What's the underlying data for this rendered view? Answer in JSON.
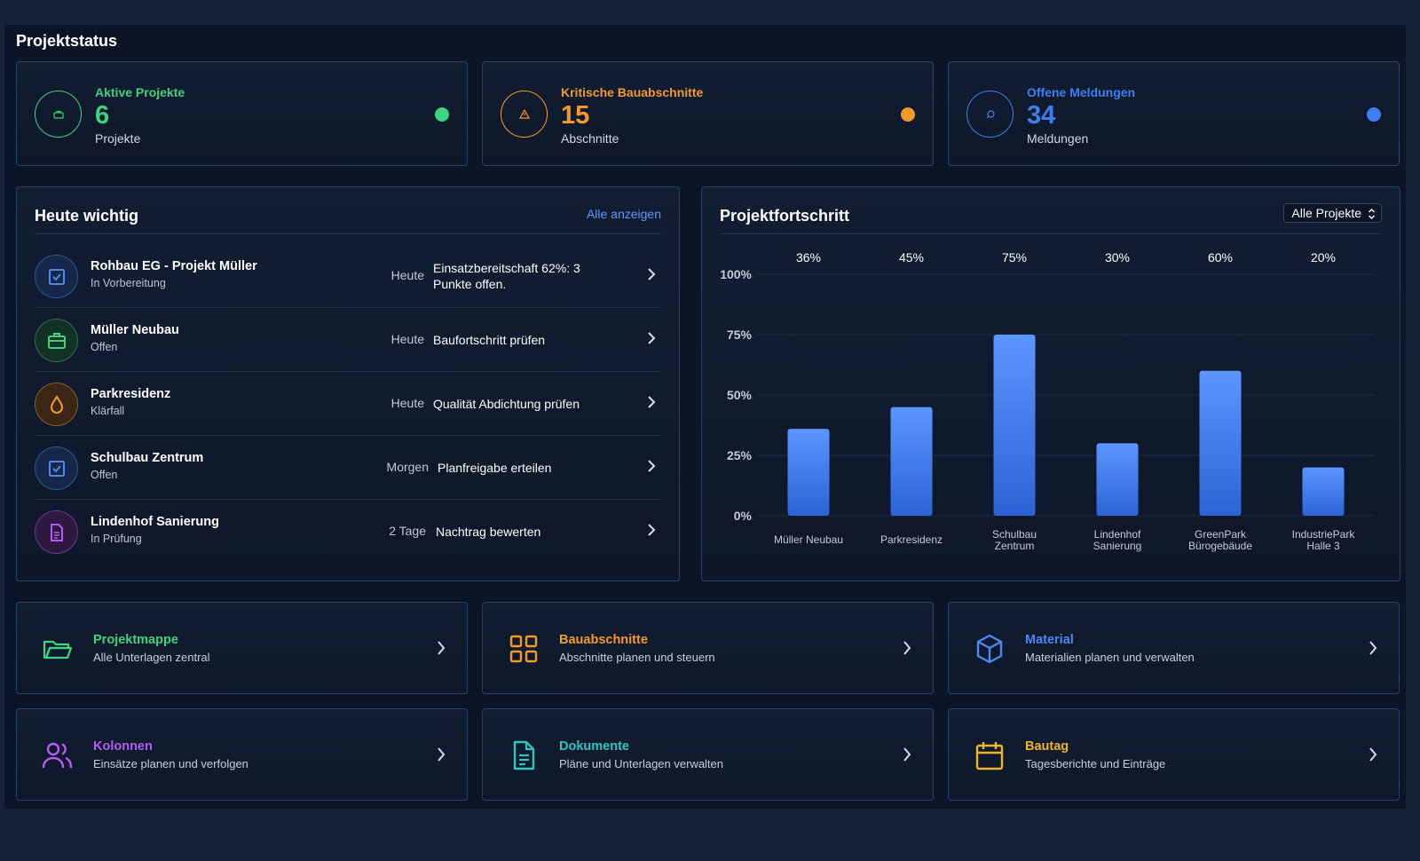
{
  "page": {
    "title": "Projektstatus"
  },
  "stats": [
    {
      "label": "Aktive Projekte",
      "value": "6",
      "unit": "Projekte",
      "color": "#3fd27f",
      "icon": "briefcase-icon"
    },
    {
      "label": "Kritische Bauabschnitte",
      "value": "15",
      "unit": "Abschnitte",
      "color": "#f39a2c",
      "icon": "warning-icon"
    },
    {
      "label": "Offene Meldungen",
      "value": "34",
      "unit": "Meldungen",
      "color": "#3f7ff4",
      "icon": "chat-icon"
    }
  ],
  "today": {
    "title": "Heute wichtig",
    "link": "Alle anzeigen",
    "items": [
      {
        "name": "Rohbau EG - Projekt Müller",
        "status": "In Vorbereitung",
        "when": "Heute",
        "note": "Einsatzbereitschaft 62%: 3 Punkte offen.",
        "icon": "checkbox-icon",
        "color": "#4f86ef"
      },
      {
        "name": "Müller Neubau",
        "status": "Offen",
        "when": "Heute",
        "note": "Baufortschritt prüfen",
        "icon": "briefcase-icon",
        "color": "#3fd27f"
      },
      {
        "name": "Parkresidenz",
        "status": "Klärfall",
        "when": "Heute",
        "note": "Qualität Abdichtung prüfen",
        "icon": "drop-icon",
        "color": "#f39a2c"
      },
      {
        "name": "Schulbau Zentrum",
        "status": "Offen",
        "when": "Morgen",
        "note": "Planfreigabe erteilen",
        "icon": "checkbox-icon",
        "color": "#4f86ef"
      },
      {
        "name": "Lindenhof Sanierung",
        "status": "In Prüfung",
        "when": "2 Tage",
        "note": "Nachtrag bewerten",
        "icon": "document-icon",
        "color": "#b45cf0"
      }
    ]
  },
  "progress": {
    "title": "Projektfortschritt",
    "filter": "Alle Projekte"
  },
  "chart_data": {
    "type": "bar",
    "categories": [
      "Müller Neubau",
      "Parkresidenz",
      "Schulbau Zentrum",
      "Lindenhof Sanierung",
      "GreenPark Bürogebäude",
      "IndustriePark Halle 3"
    ],
    "category_lines": [
      [
        "Müller Neubau"
      ],
      [
        "Parkresidenz"
      ],
      [
        "Schulbau",
        "Zentrum"
      ],
      [
        "Lindenhof",
        "Sanierung"
      ],
      [
        "GreenPark",
        "Bürogebäude"
      ],
      [
        "IndustriePark",
        "Halle 3"
      ]
    ],
    "values": [
      36,
      45,
      75,
      30,
      60,
      20
    ],
    "value_labels": [
      "36%",
      "45%",
      "75%",
      "30%",
      "60%",
      "20%"
    ],
    "y_ticks": [
      "0%",
      "25%",
      "50%",
      "75%",
      "100%"
    ],
    "ylim": [
      0,
      100
    ],
    "grid": true,
    "bar_color": "#4a86f5"
  },
  "tiles": [
    {
      "name": "Projektmappe",
      "sub": "Alle Unterlagen zentral",
      "color": "#3fd27f",
      "icon": "folder-icon"
    },
    {
      "name": "Bauabschnitte",
      "sub": "Abschnitte planen und steuern",
      "color": "#f39a2c",
      "icon": "grid-icon"
    },
    {
      "name": "Material",
      "sub": "Materialien planen und verwalten",
      "color": "#4f86ef",
      "icon": "box-icon"
    },
    {
      "name": "Kolonnen",
      "sub": "Einsätze planen und verfolgen",
      "color": "#b45cf0",
      "icon": "users-icon"
    },
    {
      "name": "Dokumente",
      "sub": "Pläne und Unterlagen verwalten",
      "color": "#2fc6c0",
      "icon": "document-icon"
    },
    {
      "name": "Bautag",
      "sub": "Tagesberichte und Einträge",
      "color": "#f0b429",
      "icon": "calendar-icon"
    }
  ]
}
